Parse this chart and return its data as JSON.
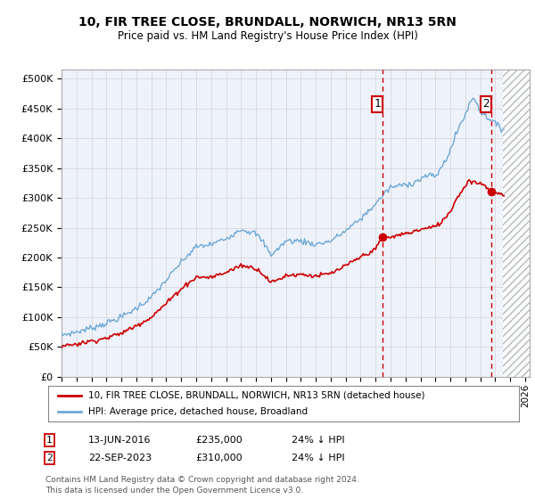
{
  "title1": "10, FIR TREE CLOSE, BRUNDALL, NORWICH, NR13 5RN",
  "title2": "Price paid vs. HM Land Registry's House Price Index (HPI)",
  "ylabel_ticks": [
    "£0",
    "£50K",
    "£100K",
    "£150K",
    "£200K",
    "£250K",
    "£300K",
    "£350K",
    "£400K",
    "£450K",
    "£500K"
  ],
  "ytick_values": [
    0,
    50000,
    100000,
    150000,
    200000,
    250000,
    300000,
    350000,
    400000,
    450000,
    500000
  ],
  "ylim": [
    0,
    515000
  ],
  "xlim_start": 1995.0,
  "xlim_end": 2026.3,
  "hpi_color": "#6fa8d6",
  "price_color": "#cc0000",
  "marker1_date": 2016.46,
  "marker1_price": 235000,
  "marker2_date": 2023.72,
  "marker2_price": 310000,
  "legend_property": "10, FIR TREE CLOSE, BRUNDALL, NORWICH, NR13 5RN (detached house)",
  "legend_hpi": "HPI: Average price, detached house, Broadland",
  "footnote": "Contains HM Land Registry data © Crown copyright and database right 2024.\nThis data is licensed under the Open Government Licence v3.0.",
  "bg_color": "#eef2fa",
  "grid_color": "#cccccc",
  "hatch_start": 2024.5,
  "hpi_anchors_t": [
    1995.0,
    1996.0,
    1997.0,
    1998.0,
    1999.0,
    2000.0,
    2001.0,
    2002.0,
    2003.0,
    2004.0,
    2005.0,
    2006.0,
    2007.0,
    2008.0,
    2008.5,
    2009.0,
    2009.5,
    2010.0,
    2011.0,
    2012.0,
    2013.0,
    2014.0,
    2015.0,
    2016.0,
    2016.5,
    2017.0,
    2017.5,
    2018.0,
    2018.5,
    2019.0,
    2019.5,
    2020.0,
    2020.5,
    2021.0,
    2021.5,
    2022.0,
    2022.25,
    2022.5,
    2022.75,
    2023.0,
    2023.25,
    2023.5,
    2023.75,
    2024.0,
    2024.25,
    2024.5
  ],
  "hpi_anchors_v": [
    70000,
    75000,
    82000,
    90000,
    100000,
    115000,
    133000,
    162000,
    192000,
    218000,
    222000,
    232000,
    248000,
    240000,
    225000,
    205000,
    215000,
    228000,
    228000,
    222000,
    228000,
    245000,
    265000,
    290000,
    305000,
    318000,
    320000,
    323000,
    325000,
    332000,
    338000,
    336000,
    355000,
    380000,
    415000,
    440000,
    456000,
    468000,
    462000,
    445000,
    440000,
    435000,
    432000,
    425000,
    418000,
    415000
  ],
  "prop_anchors_t": [
    1995.0,
    1996.0,
    1997.0,
    1998.0,
    1999.0,
    2000.0,
    2001.0,
    2002.0,
    2003.0,
    2004.0,
    2005.0,
    2006.0,
    2007.0,
    2008.0,
    2008.5,
    2009.0,
    2009.5,
    2010.0,
    2011.0,
    2012.0,
    2013.0,
    2014.0,
    2015.0,
    2016.0,
    2016.46,
    2017.0,
    2017.5,
    2018.0,
    2019.0,
    2020.0,
    2020.5,
    2021.0,
    2021.5,
    2022.0,
    2022.25,
    2022.5,
    2022.75,
    2023.0,
    2023.25,
    2023.72,
    2024.0,
    2024.5
  ],
  "prop_anchors_v": [
    52000,
    55000,
    60000,
    65000,
    73000,
    86000,
    100000,
    123000,
    148000,
    167000,
    167000,
    175000,
    187000,
    182000,
    172000,
    158000,
    163000,
    170000,
    172000,
    169000,
    173000,
    186000,
    201000,
    214000,
    235000,
    233000,
    238000,
    240000,
    247000,
    252000,
    262000,
    278000,
    303000,
    320000,
    330000,
    328000,
    325000,
    325000,
    323000,
    310000,
    308000,
    305000
  ]
}
